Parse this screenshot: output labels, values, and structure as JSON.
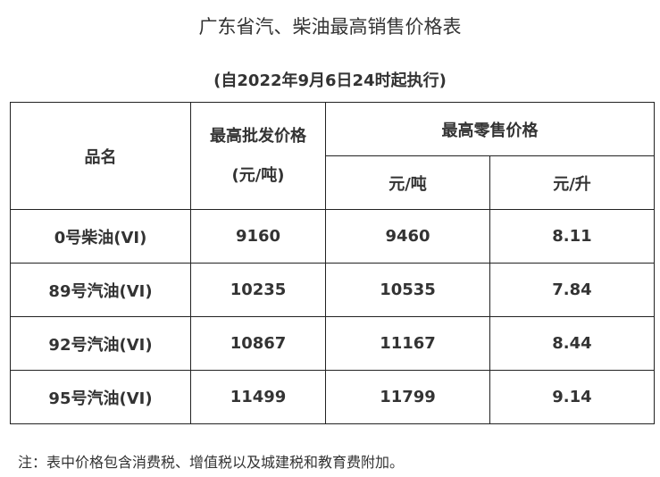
{
  "title": "广东省汽、柴油最高销售价格表",
  "subtitle": "(自2022年9月6日24时起执行)",
  "table": {
    "headers": {
      "name": "品名",
      "wholesale": "最高批发价格",
      "wholesale_unit": "(元/吨)",
      "retail": "最高零售价格",
      "retail_ton": "元/吨",
      "retail_liter": "元/升"
    },
    "rows": [
      {
        "name": "0号柴油(VI)",
        "wholesale": "9160",
        "retail_ton": "9460",
        "retail_liter": "8.11"
      },
      {
        "name": "89号汽油(VI)",
        "wholesale": "10235",
        "retail_ton": "10535",
        "retail_liter": "7.84"
      },
      {
        "name": "92号汽油(VI)",
        "wholesale": "10867",
        "retail_ton": "11167",
        "retail_liter": "8.44"
      },
      {
        "name": "95号汽油(VI)",
        "wholesale": "11499",
        "retail_ton": "11799",
        "retail_liter": "9.14"
      }
    ]
  },
  "note": "注：表中价格包含消费税、增值税以及城建税和教育费附加。"
}
